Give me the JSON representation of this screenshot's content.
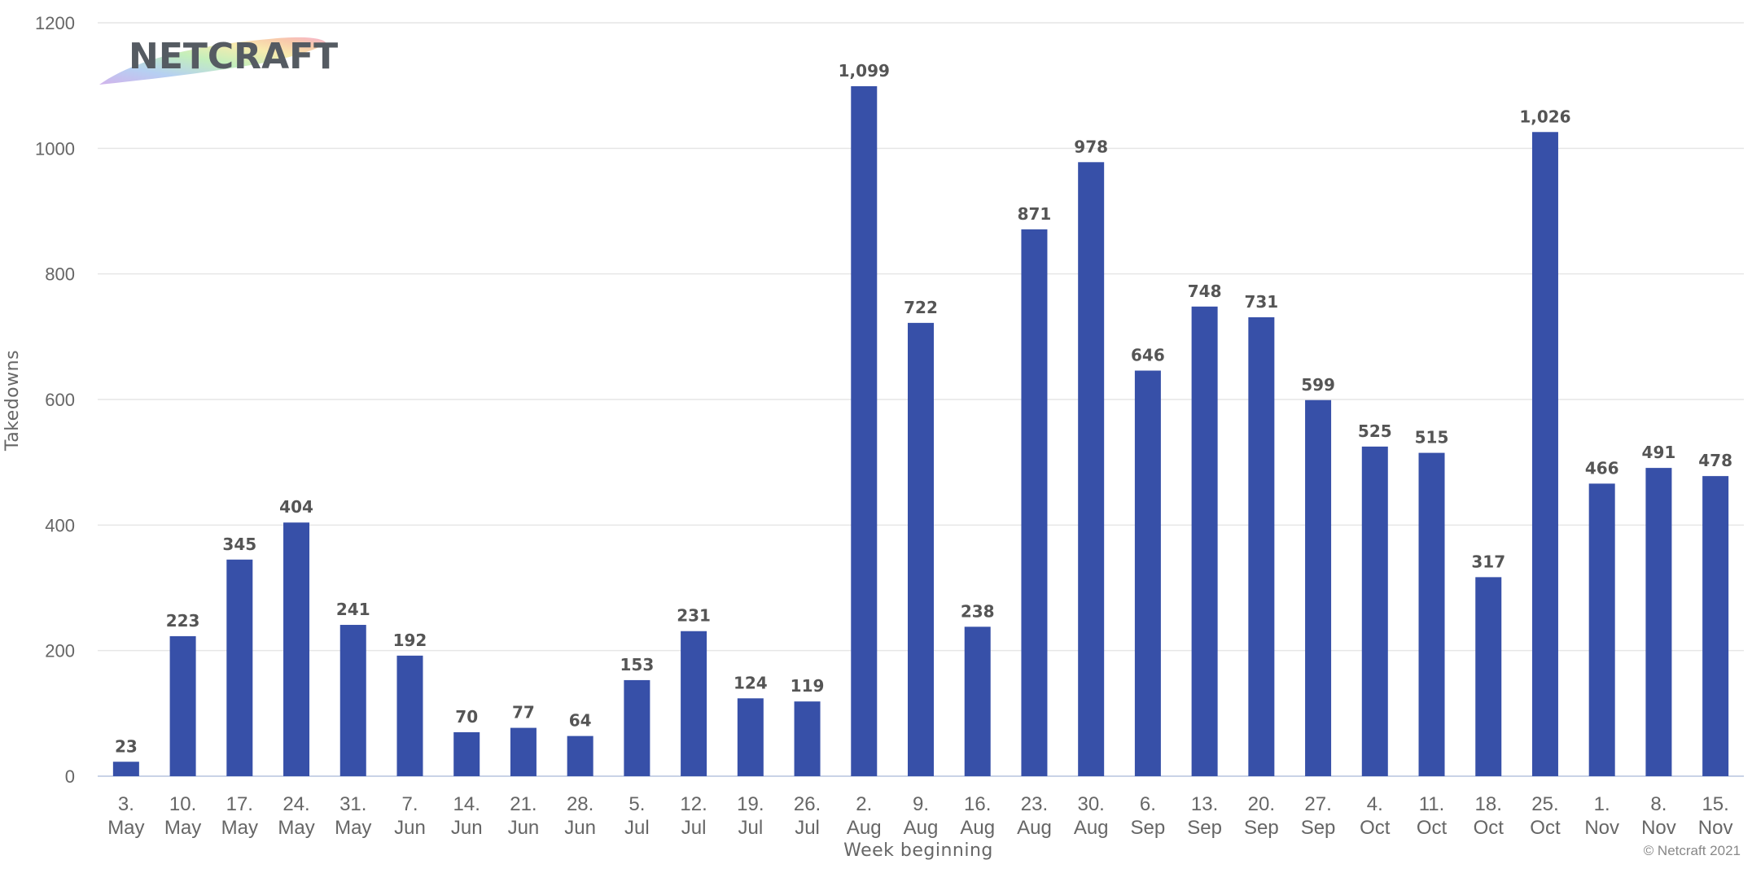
{
  "logo": {
    "text": "NETCRAFT"
  },
  "credit": "© Netcraft 2021",
  "colors": {
    "bar": "#3750a8",
    "grid": "#e6e6e6",
    "text": "#666666"
  },
  "chart_data": {
    "type": "bar",
    "title": "",
    "xlabel": "Week beginning",
    "ylabel": "Takedowns",
    "ylim": [
      0,
      1200
    ],
    "yticks": [
      0,
      200,
      400,
      600,
      800,
      1000,
      1200
    ],
    "grid": true,
    "legend": "none",
    "categories": [
      [
        "3.",
        "May"
      ],
      [
        "10.",
        "May"
      ],
      [
        "17.",
        "May"
      ],
      [
        "24.",
        "May"
      ],
      [
        "31.",
        "May"
      ],
      [
        "7.",
        "Jun"
      ],
      [
        "14.",
        "Jun"
      ],
      [
        "21.",
        "Jun"
      ],
      [
        "28.",
        "Jun"
      ],
      [
        "5.",
        "Jul"
      ],
      [
        "12.",
        "Jul"
      ],
      [
        "19.",
        "Jul"
      ],
      [
        "26.",
        "Jul"
      ],
      [
        "2.",
        "Aug"
      ],
      [
        "9.",
        "Aug"
      ],
      [
        "16.",
        "Aug"
      ],
      [
        "23.",
        "Aug"
      ],
      [
        "30.",
        "Aug"
      ],
      [
        "6.",
        "Sep"
      ],
      [
        "13.",
        "Sep"
      ],
      [
        "20.",
        "Sep"
      ],
      [
        "27.",
        "Sep"
      ],
      [
        "4.",
        "Oct"
      ],
      [
        "11.",
        "Oct"
      ],
      [
        "18.",
        "Oct"
      ],
      [
        "25.",
        "Oct"
      ],
      [
        "1.",
        "Nov"
      ],
      [
        "8.",
        "Nov"
      ],
      [
        "15.",
        "Nov"
      ]
    ],
    "values": [
      23,
      223,
      345,
      404,
      241,
      192,
      70,
      77,
      64,
      153,
      231,
      124,
      119,
      1099,
      722,
      238,
      871,
      978,
      646,
      748,
      731,
      599,
      525,
      515,
      317,
      1026,
      466,
      491,
      478
    ],
    "value_labels": [
      "23",
      "223",
      "345",
      "404",
      "241",
      "192",
      "70",
      "77",
      "64",
      "153",
      "231",
      "124",
      "119",
      "1,099",
      "722",
      "238",
      "871",
      "978",
      "646",
      "748",
      "731",
      "599",
      "525",
      "515",
      "317",
      "1,026",
      "466",
      "491",
      "478"
    ]
  }
}
